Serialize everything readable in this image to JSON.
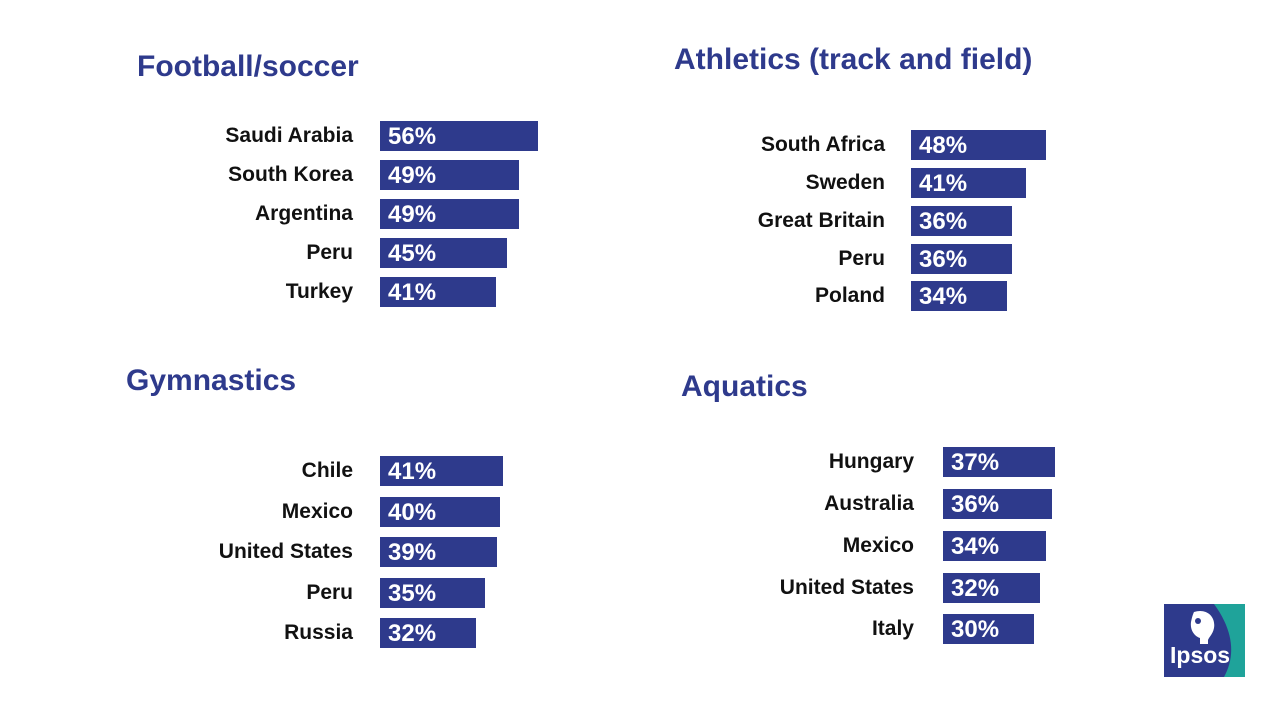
{
  "chart_data": [
    {
      "type": "bar",
      "orientation": "horizontal",
      "title": "Football/soccer",
      "categories": [
        "Saudi Arabia",
        "South Korea",
        "Argentina",
        "Peru",
        "Turkey"
      ],
      "values": [
        56,
        49,
        49,
        45,
        41
      ],
      "value_labels": [
        "56%",
        "49%",
        "49%",
        "45%",
        "41%"
      ],
      "unit": "%",
      "legend": "none",
      "grid": false
    },
    {
      "type": "bar",
      "orientation": "horizontal",
      "title": "Athletics (track and field)",
      "categories": [
        "South Africa",
        "Sweden",
        "Great Britain",
        "Peru",
        "Poland"
      ],
      "values": [
        48,
        41,
        36,
        36,
        34
      ],
      "value_labels": [
        "48%",
        "41%",
        "36%",
        "36%",
        "34%"
      ],
      "unit": "%",
      "legend": "none",
      "grid": false
    },
    {
      "type": "bar",
      "orientation": "horizontal",
      "title": "Gymnastics",
      "categories": [
        "Chile",
        "Mexico",
        "United States",
        "Peru",
        "Russia"
      ],
      "values": [
        41,
        40,
        39,
        35,
        32
      ],
      "value_labels": [
        "41%",
        "40%",
        "39%",
        "35%",
        "32%"
      ],
      "unit": "%",
      "legend": "none",
      "grid": false
    },
    {
      "type": "bar",
      "orientation": "horizontal",
      "title": "Aquatics",
      "categories": [
        "Hungary",
        "Australia",
        "Mexico",
        "United States",
        "Italy"
      ],
      "values": [
        37,
        36,
        34,
        32,
        30
      ],
      "value_labels": [
        "37%",
        "36%",
        "34%",
        "32%",
        "30%"
      ],
      "unit": "%",
      "legend": "none",
      "grid": false
    }
  ],
  "colors": {
    "bar": "#2E3A8C",
    "title": "#2E3A8C",
    "category_text": "#111111",
    "logo_teal": "#1FA39A"
  },
  "logo": {
    "text": "Ipsos",
    "icon": "ipsos-head-icon"
  }
}
